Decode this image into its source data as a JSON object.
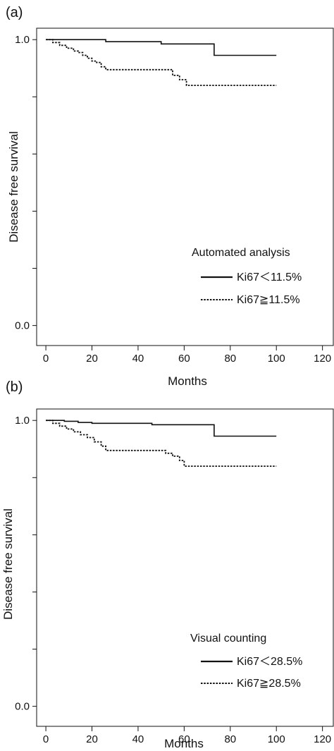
{
  "chart_data": [
    {
      "type": "line",
      "panel_label": "(a)",
      "xlabel": "Months",
      "ylabel": "Disease free survival",
      "xlim": [
        -4,
        125
      ],
      "ylim": [
        -0.07,
        1.04
      ],
      "xticks": [
        "0",
        "20",
        "40",
        "60",
        "80",
        "100",
        "120"
      ],
      "yticks": [
        "0.0",
        "1.0"
      ],
      "legend_title": "Automated analysis",
      "legend_position": "bottom-right",
      "series": [
        {
          "name": "Ki67＜11.5%",
          "style": "solid",
          "x": [
            0,
            24,
            26,
            48,
            50,
            73,
            100
          ],
          "y": [
            1.0,
            1.0,
            0.993,
            0.993,
            0.985,
            0.945,
            0.945
          ]
        },
        {
          "name": "Ki67≧11.5%",
          "style": "dotted",
          "x": [
            0,
            3,
            6,
            9,
            12,
            14,
            16,
            18,
            20,
            22,
            24,
            26,
            55,
            58,
            61,
            100
          ],
          "y": [
            1.0,
            0.99,
            0.98,
            0.97,
            0.96,
            0.955,
            0.945,
            0.935,
            0.925,
            0.92,
            0.905,
            0.895,
            0.875,
            0.86,
            0.84,
            0.84
          ]
        }
      ]
    },
    {
      "type": "line",
      "panel_label": "(b)",
      "xlabel": "Months",
      "ylabel": "Disease free survival",
      "xlim": [
        -4,
        125
      ],
      "ylim": [
        -0.07,
        1.04
      ],
      "xticks": [
        "0",
        "20",
        "40",
        "60",
        "80",
        "100",
        "120"
      ],
      "yticks": [
        "0.0",
        "1.0"
      ],
      "legend_title": "Visual counting",
      "legend_position": "bottom-right",
      "series": [
        {
          "name": "Ki67＜28.5%",
          "style": "solid",
          "x": [
            0,
            8,
            14,
            20,
            46,
            73,
            100
          ],
          "y": [
            1.0,
            0.997,
            0.993,
            0.99,
            0.985,
            0.945,
            0.945
          ]
        },
        {
          "name": "Ki67≧28.5%",
          "style": "dotted",
          "x": [
            0,
            3,
            6,
            9,
            12,
            15,
            18,
            21,
            24,
            26,
            52,
            55,
            58,
            60,
            100
          ],
          "y": [
            1.0,
            0.99,
            0.98,
            0.97,
            0.96,
            0.95,
            0.94,
            0.925,
            0.91,
            0.895,
            0.885,
            0.875,
            0.86,
            0.84,
            0.84
          ]
        }
      ]
    }
  ]
}
